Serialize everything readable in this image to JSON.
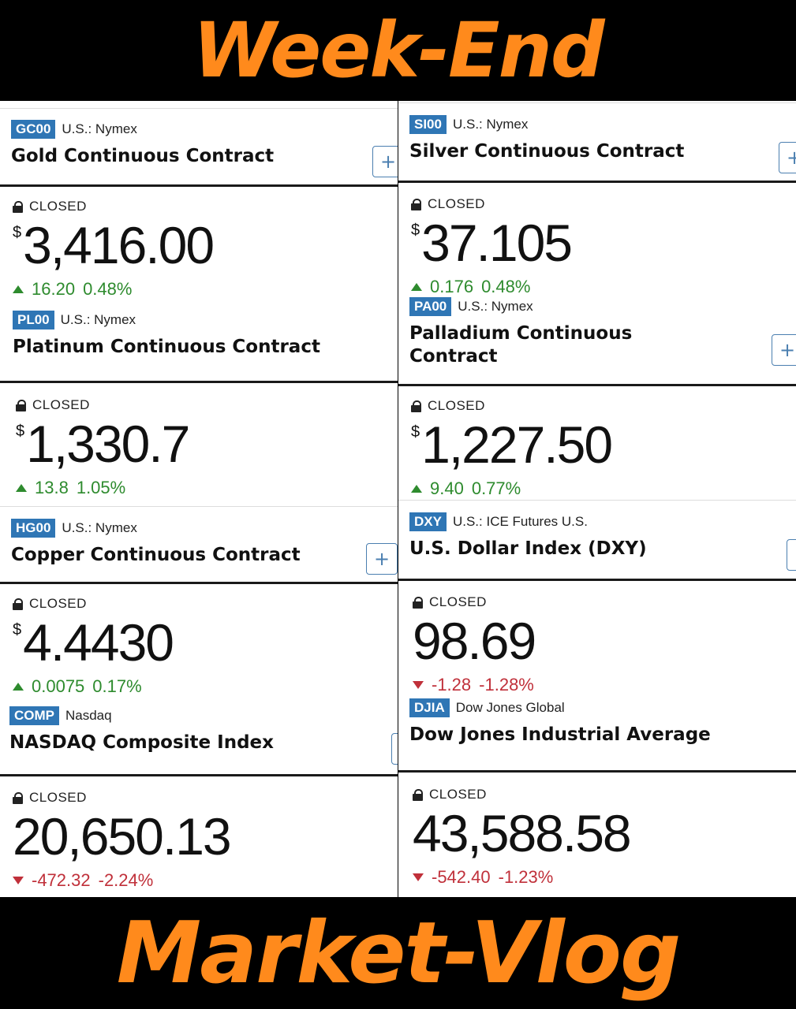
{
  "banners": {
    "top": "Week-End",
    "bottom": "Market-Vlog"
  },
  "colors": {
    "banner_text": "#ff8a1c",
    "ticker_bg": "#2f76b5",
    "up": "#2e8b2e",
    "down": "#c0303a"
  },
  "closed_label": "CLOSED",
  "currency_symbol": "$",
  "left": {
    "gold": {
      "ticker": "GC00",
      "exchange": "U.S.: Nymex",
      "name": "Gold Continuous Contract",
      "price": "3,416.00",
      "change": "16.20",
      "change_pct": "0.48%",
      "direction": "up"
    },
    "platinum": {
      "ticker": "PL00",
      "exchange": "U.S.: Nymex",
      "name": "Platinum Continuous Contract",
      "price": "1,330.7",
      "change": "13.8",
      "change_pct": "1.05%",
      "direction": "up"
    },
    "copper": {
      "ticker": "HG00",
      "exchange": "U.S.: Nymex",
      "name": "Copper Continuous Contract",
      "price": "4.4430",
      "change": "0.0075",
      "change_pct": "0.17%",
      "direction": "up"
    },
    "nasdaq": {
      "ticker": "COMP",
      "exchange": "Nasdaq",
      "name": "NASDAQ Composite Index",
      "price": "20,650.13",
      "change": "-472.32",
      "change_pct": "-2.24%",
      "direction": "down"
    }
  },
  "right": {
    "silver": {
      "ticker": "SI00",
      "exchange": "U.S.: Nymex",
      "name": "Silver Continuous Contract",
      "price": "37.105",
      "change": "0.176",
      "change_pct": "0.48%",
      "direction": "up"
    },
    "palladium": {
      "ticker": "PA00",
      "exchange": "U.S.: Nymex",
      "name_line1": "Palladium Continuous",
      "name_line2": "Contract",
      "price": "1,227.50",
      "change": "9.40",
      "change_pct": "0.77%",
      "direction": "up"
    },
    "dxy": {
      "ticker": "DXY",
      "exchange": "U.S.: ICE Futures U.S.",
      "name": "U.S. Dollar Index (DXY)",
      "price": "98.69",
      "change": "-1.28",
      "change_pct": "-1.28%",
      "direction": "down"
    },
    "djia": {
      "ticker": "DJIA",
      "exchange": "Dow Jones Global",
      "name": "Dow Jones Industrial Average",
      "price": "43,588.58",
      "change": "-542.40",
      "change_pct": "-1.23%",
      "direction": "down"
    }
  }
}
